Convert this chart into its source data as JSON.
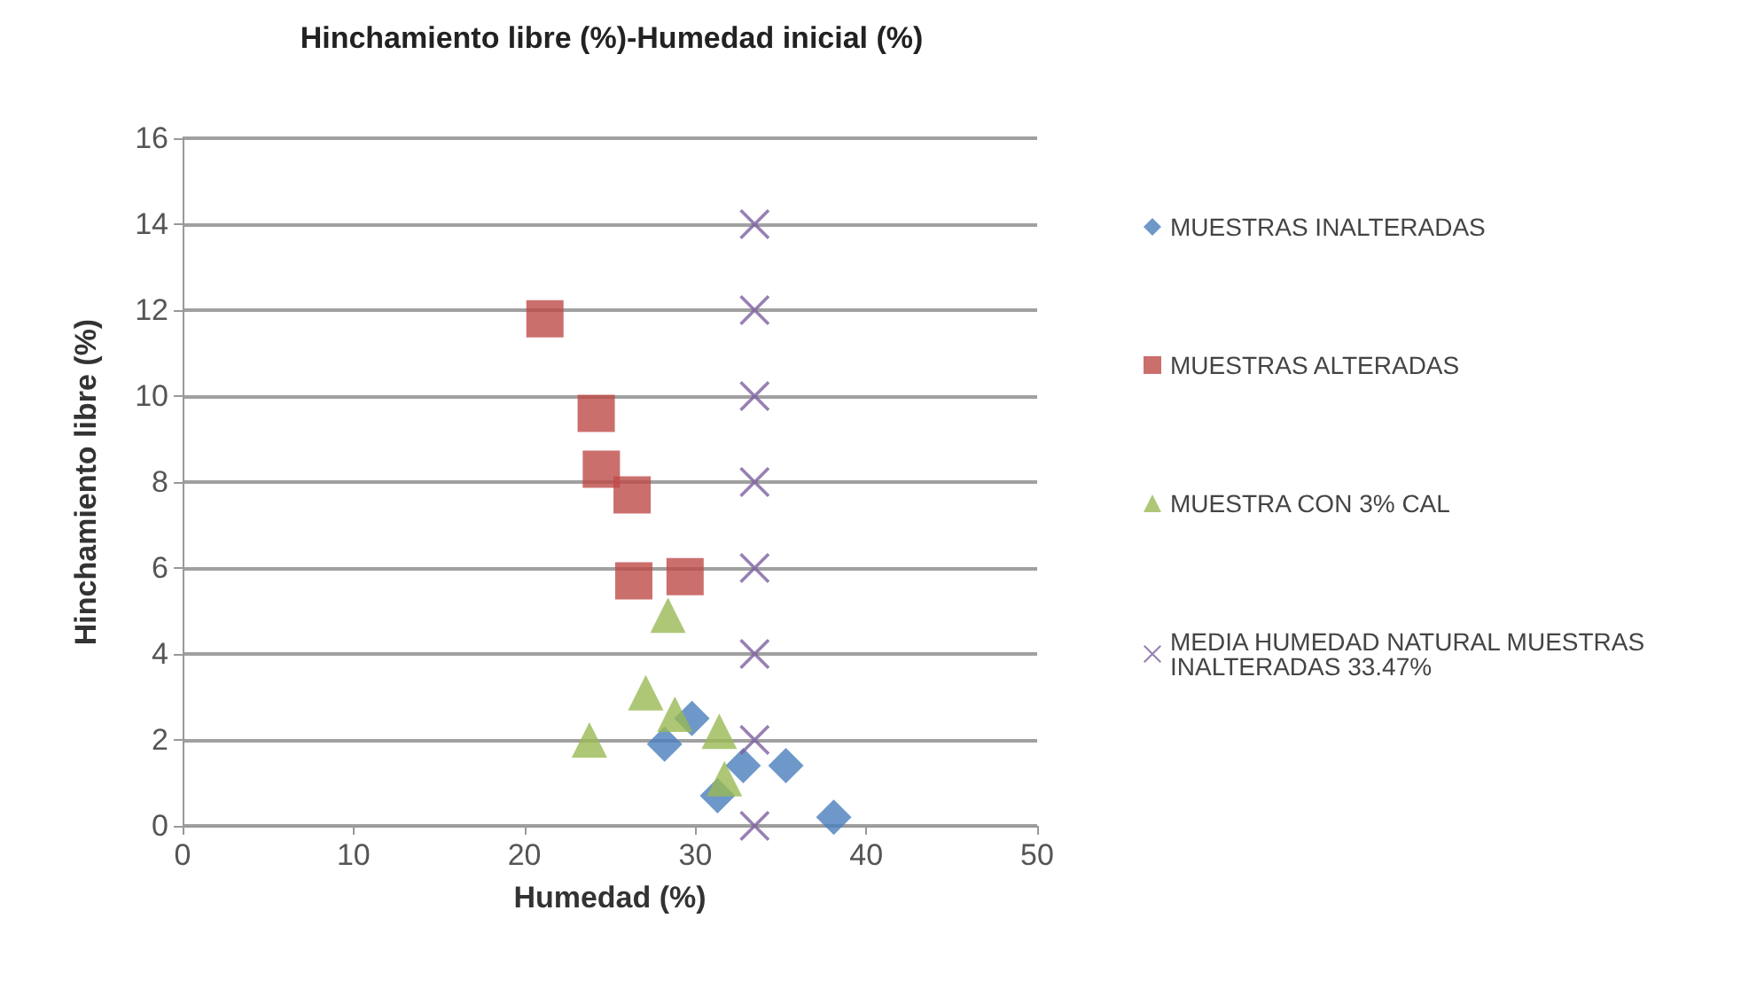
{
  "chart_data": {
    "type": "scatter",
    "title": "Hinchamiento libre (%)-Humedad inicial (%)",
    "xlabel": "Humedad (%)",
    "ylabel": "Hinchamiento libre (%)",
    "xlim": [
      0,
      50
    ],
    "xticks": [
      0,
      10,
      20,
      30,
      40,
      50
    ],
    "ylim": [
      0,
      16
    ],
    "yticks": [
      0,
      2,
      4,
      6,
      8,
      10,
      12,
      14,
      16
    ],
    "grid": "y",
    "legend": "right",
    "series": [
      {
        "name": "MUESTRAS INALTERADAS",
        "color": "#4a7ebb",
        "marker": "diamond",
        "x": [
          28.2,
          29.8,
          31.3,
          32.8,
          35.3,
          38.1
        ],
        "values": [
          1.9,
          2.5,
          0.7,
          1.4,
          1.4,
          0.2
        ]
      },
      {
        "name": "MUESTRAS ALTERADAS",
        "color": "#be4b48",
        "marker": "square",
        "x": [
          21.2,
          24.2,
          24.5,
          26.3,
          26.4,
          29.4
        ],
        "values": [
          11.8,
          9.6,
          8.3,
          7.7,
          5.7,
          5.8
        ]
      },
      {
        "name": "MUESTRA CON 3% CAL",
        "color": "#98b954",
        "marker": "triangle",
        "x": [
          23.8,
          28.4,
          27.1,
          28.8,
          31.4,
          31.7
        ],
        "values": [
          2.0,
          4.9,
          3.1,
          2.6,
          2.2,
          1.1
        ]
      },
      {
        "name": "MEDIA HUMEDAD NATURAL MUESTRAS INALTERADAS 33.47%",
        "color": "#7d60a0",
        "marker": "cross",
        "x": [
          33.47,
          33.47,
          33.47,
          33.47,
          33.47,
          33.47,
          33.47,
          33.47
        ],
        "values": [
          0,
          2,
          4,
          6,
          8,
          10,
          12,
          14
        ]
      }
    ]
  }
}
